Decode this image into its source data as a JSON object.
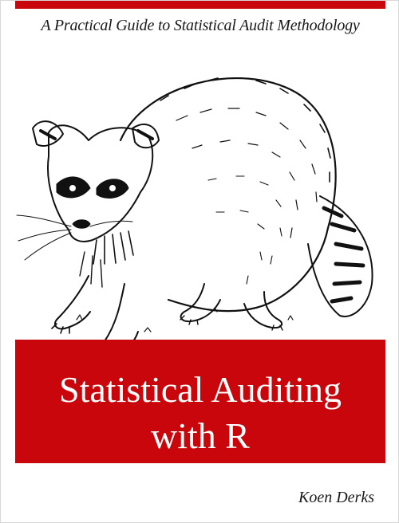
{
  "cover": {
    "subtitle": "A Practical Guide to Statistical Audit Methodology",
    "title_line_1": "Statistical Auditing",
    "title_line_2": "with R",
    "author": "Koen Derks",
    "illustration": "raccoon-illustration",
    "colors": {
      "accent_red": "#c8060b",
      "background": "#ffffff",
      "ink": "#1a1a1a"
    }
  }
}
